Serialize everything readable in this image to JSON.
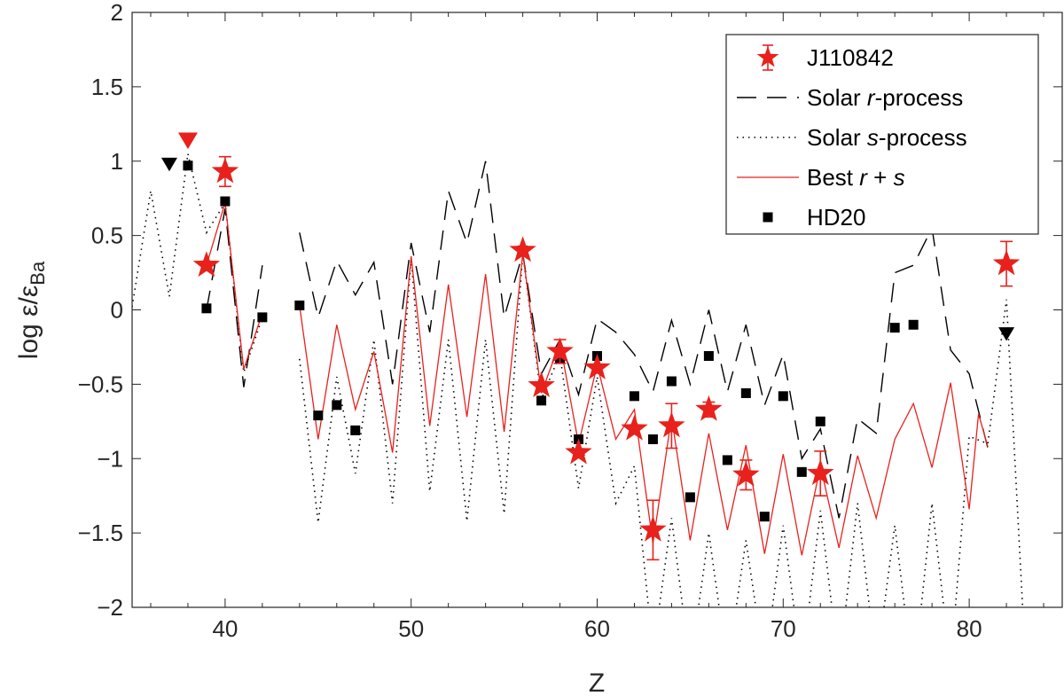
{
  "chart_data": {
    "type": "scatter",
    "xlabel": "Z",
    "ylabel": "log ε/ε",
    "ylabel_sub": "Ba",
    "xlim": [
      35,
      85
    ],
    "ylim": [
      -2,
      2
    ],
    "x_ticks": [
      40,
      50,
      60,
      70,
      80
    ],
    "y_ticks": [
      -2,
      -1.5,
      -1,
      -0.5,
      0,
      0.5,
      1,
      1.5,
      2
    ],
    "grid": false,
    "legend_position": "top-right",
    "legend": [
      {
        "label": "J110842",
        "style": "red-star-errorbar"
      },
      {
        "label": "Solar  r-process",
        "style": "black-dashed"
      },
      {
        "label": "Solar  s-process",
        "style": "black-dotted"
      },
      {
        "label": "Best  r + s",
        "style": "red-line"
      },
      {
        "label": "HD20",
        "style": "black-square"
      }
    ],
    "series": [
      {
        "name": "Solar  r-process",
        "style": "dashed",
        "color": "#000000",
        "segments": [
          [
            [
              39,
              0.0
            ],
            [
              40,
              0.68
            ],
            [
              41,
              -0.52
            ],
            [
              42,
              0.3
            ]
          ],
          [
            [
              44,
              0.52
            ],
            [
              45,
              -0.05
            ],
            [
              46,
              0.33
            ],
            [
              47,
              0.1
            ],
            [
              48,
              0.32
            ],
            [
              49,
              -0.5
            ],
            [
              50,
              0.45
            ],
            [
              51,
              -0.15
            ],
            [
              52,
              0.8
            ],
            [
              53,
              0.45
            ],
            [
              54,
              1.0
            ],
            [
              55,
              -0.05
            ],
            [
              56,
              0.38
            ],
            [
              57,
              -0.43
            ],
            [
              58,
              -0.2
            ],
            [
              59,
              -0.57
            ],
            [
              60,
              -0.06
            ],
            [
              61,
              -0.15
            ],
            [
              62,
              -0.3
            ],
            [
              63,
              -0.55
            ],
            [
              64,
              -0.07
            ],
            [
              65,
              -0.5
            ],
            [
              66,
              0.0
            ],
            [
              67,
              -0.55
            ],
            [
              68,
              -0.1
            ],
            [
              69,
              -0.64
            ],
            [
              70,
              -0.3
            ],
            [
              71,
              -1.0
            ],
            [
              72,
              -0.8
            ],
            [
              73,
              -1.4
            ],
            [
              74,
              -0.73
            ],
            [
              75,
              -0.83
            ],
            [
              76,
              0.25
            ],
            [
              77,
              0.3
            ],
            [
              78,
              0.55
            ],
            [
              79,
              -0.27
            ],
            [
              80,
              -0.43
            ],
            [
              81,
              -0.93
            ]
          ]
        ]
      },
      {
        "name": "Solar  s-process",
        "style": "dotted",
        "color": "#000000",
        "segments": [
          [
            [
              35,
              0.02
            ],
            [
              36,
              0.8
            ],
            [
              37,
              0.09
            ],
            [
              38,
              1.05
            ],
            [
              39,
              0.52
            ],
            [
              40,
              0.72
            ],
            [
              41,
              -0.42
            ],
            [
              42,
              -0.05
            ]
          ],
          [
            [
              44,
              -0.33
            ],
            [
              45,
              -1.43
            ],
            [
              46,
              -0.45
            ],
            [
              47,
              -1.1
            ],
            [
              48,
              -0.2
            ],
            [
              49,
              -1.3
            ],
            [
              50,
              0.35
            ],
            [
              51,
              -1.22
            ],
            [
              52,
              -0.2
            ],
            [
              53,
              -1.42
            ],
            [
              54,
              -0.2
            ],
            [
              55,
              -1.37
            ],
            [
              56,
              0.38
            ],
            [
              57,
              -0.6
            ],
            [
              58,
              -0.3
            ],
            [
              59,
              -1.2
            ],
            [
              60,
              -0.45
            ],
            [
              61,
              -1.3
            ],
            [
              62,
              -1.05
            ],
            [
              63,
              -2.3
            ],
            [
              64,
              -1.4
            ],
            [
              65,
              -2.4
            ],
            [
              66,
              -1.5
            ],
            [
              67,
              -2.4
            ],
            [
              68,
              -1.55
            ],
            [
              69,
              -2.4
            ],
            [
              70,
              -1.45
            ],
            [
              71,
              -2.4
            ],
            [
              72,
              -1.35
            ],
            [
              73,
              -2.4
            ],
            [
              74,
              -1.3
            ],
            [
              75,
              -2.4
            ],
            [
              76,
              -1.45
            ],
            [
              77,
              -2.5
            ],
            [
              78,
              -1.3
            ],
            [
              79,
              -2.4
            ],
            [
              80,
              -0.85
            ],
            [
              81,
              -0.9
            ],
            [
              82,
              0.07
            ],
            [
              83,
              -2.3
            ]
          ]
        ]
      },
      {
        "name": "Best  r + s",
        "style": "solid",
        "color": "#e8211c",
        "segments": [
          [
            [
              39,
              0.3
            ],
            [
              40,
              0.72
            ],
            [
              41,
              -0.4
            ],
            [
              42,
              -0.02
            ]
          ],
          [
            [
              44,
              0.03
            ],
            [
              45,
              -0.87
            ],
            [
              46,
              -0.1
            ],
            [
              47,
              -0.67
            ],
            [
              48,
              -0.28
            ],
            [
              49,
              -0.96
            ],
            [
              50,
              0.36
            ],
            [
              51,
              -0.78
            ],
            [
              52,
              0.17
            ],
            [
              53,
              -0.72
            ],
            [
              54,
              0.24
            ],
            [
              55,
              -0.82
            ],
            [
              56,
              0.38
            ],
            [
              57,
              -0.56
            ],
            [
              58,
              -0.22
            ],
            [
              59,
              -0.9
            ],
            [
              60,
              -0.37
            ],
            [
              61,
              -0.87
            ],
            [
              62,
              -0.67
            ],
            [
              63,
              -1.57
            ],
            [
              64,
              -0.72
            ],
            [
              65,
              -1.55
            ],
            [
              66,
              -0.83
            ],
            [
              67,
              -1.48
            ],
            [
              68,
              -0.91
            ],
            [
              69,
              -1.64
            ],
            [
              70,
              -0.97
            ],
            [
              71,
              -1.65
            ],
            [
              72,
              -1.05
            ],
            [
              73,
              -1.6
            ],
            [
              74,
              -0.98
            ],
            [
              75,
              -1.4
            ],
            [
              76,
              -0.87
            ],
            [
              77,
              -0.63
            ],
            [
              78,
              -1.06
            ],
            [
              79,
              -0.49
            ],
            [
              80,
              -1.34
            ],
            [
              80.5,
              -0.7
            ],
            [
              81,
              -0.92
            ]
          ]
        ]
      }
    ],
    "hd20_points": {
      "name": "HD20",
      "marker": "square",
      "color": "#000000",
      "points": [
        [
          38,
          0.97
        ],
        [
          39,
          0.01
        ],
        [
          40,
          0.73
        ],
        [
          42,
          -0.05
        ],
        [
          44,
          0.03
        ],
        [
          45,
          -0.71
        ],
        [
          46,
          -0.64
        ],
        [
          47,
          -0.81
        ],
        [
          56,
          0.4
        ],
        [
          57,
          -0.61
        ],
        [
          58,
          -0.33
        ],
        [
          59,
          -0.87
        ],
        [
          60,
          -0.31
        ],
        [
          62,
          -0.58
        ],
        [
          63,
          -0.87
        ],
        [
          64,
          -0.48
        ],
        [
          65,
          -1.26
        ],
        [
          66,
          -0.31
        ],
        [
          67,
          -1.01
        ],
        [
          68,
          -0.56
        ],
        [
          69,
          -1.39
        ],
        [
          70,
          -0.58
        ],
        [
          71,
          -1.09
        ],
        [
          72,
          -0.75
        ],
        [
          76,
          -0.12
        ],
        [
          77,
          -0.1
        ]
      ]
    },
    "hd20_upper_limits": {
      "marker": "down-triangle",
      "color": "#000000",
      "points": [
        [
          37,
          0.98
        ],
        [
          82,
          -0.16
        ]
      ]
    },
    "j110842_points": {
      "name": "J110842",
      "marker": "star",
      "color": "#e8211c",
      "points": [
        {
          "x": 39,
          "y": 0.3,
          "err": 0
        },
        {
          "x": 40,
          "y": 0.93,
          "err": 0.1
        },
        {
          "x": 56,
          "y": 0.4,
          "err": 0
        },
        {
          "x": 57,
          "y": -0.51,
          "err": 0
        },
        {
          "x": 58,
          "y": -0.28,
          "err": 0.08
        },
        {
          "x": 59,
          "y": -0.96,
          "err": 0
        },
        {
          "x": 60,
          "y": -0.39,
          "err": 0
        },
        {
          "x": 62,
          "y": -0.8,
          "err": 0
        },
        {
          "x": 63,
          "y": -1.48,
          "err": 0.2
        },
        {
          "x": 64,
          "y": -0.78,
          "err": 0.15
        },
        {
          "x": 66,
          "y": -0.67,
          "err": 0.05
        },
        {
          "x": 68,
          "y": -1.11,
          "err": 0.1
        },
        {
          "x": 72,
          "y": -1.1,
          "err": 0.15
        },
        {
          "x": 82,
          "y": 0.31,
          "err": 0.15
        }
      ]
    },
    "j110842_upper_limits": {
      "marker": "down-triangle",
      "color": "#e8211c",
      "points": [
        [
          38,
          1.14
        ]
      ]
    }
  }
}
